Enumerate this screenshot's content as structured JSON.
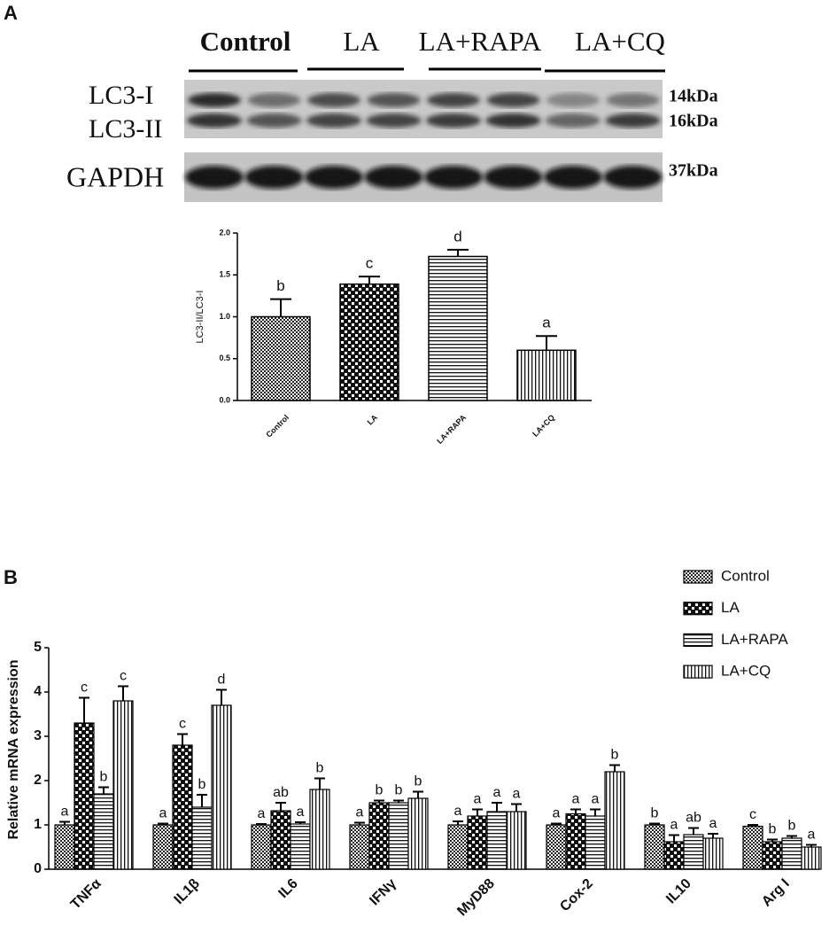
{
  "panel_labels": [
    "A",
    "B"
  ],
  "blot": {
    "lane_groups": [
      "Control",
      "LA",
      "LA+RAPA",
      "LA+CQ"
    ],
    "rows": [
      "LC3-I",
      "LC3-II",
      "GAPDH"
    ],
    "markers": [
      "14kDa",
      "16kDa",
      "37kDa"
    ]
  },
  "chart_data": [
    {
      "type": "bar",
      "y_label": "LC3-II/LC3-I",
      "categories": [
        "Control",
        "LA",
        "LA+RAPA",
        "LA+CQ"
      ],
      "values": [
        1.0,
        1.39,
        1.72,
        0.6
      ],
      "errors": [
        0.21,
        0.09,
        0.08,
        0.17
      ],
      "annotations": [
        "b",
        "c",
        "d",
        "a"
      ],
      "patterns": [
        "dots",
        "checker",
        "hlines",
        "vlines"
      ],
      "ylim": [
        0,
        2
      ],
      "yticks": [
        {
          "value": 0,
          "label": "0.0"
        },
        {
          "value": 0.5,
          "label": "0.5"
        },
        {
          "value": 1,
          "label": "1.0"
        },
        {
          "value": 1.5,
          "label": "1.5"
        },
        {
          "value": 2,
          "label": "2.0"
        }
      ]
    },
    {
      "type": "grouped_bar",
      "y_label": "Relative mRNA expression",
      "categories": [
        "TNFα",
        "IL1β",
        "IL6",
        "IFNγ",
        "MyD88",
        "Cox-2",
        "IL10",
        "Arg I"
      ],
      "series": [
        {
          "name": "Control",
          "pattern": "dots",
          "values": [
            1.0,
            1.0,
            1.0,
            1.0,
            1.0,
            1.0,
            1.0,
            0.97
          ],
          "errors": [
            0.07,
            0.03,
            0.02,
            0.05,
            0.08,
            0.03,
            0.03,
            0.03
          ],
          "annotations": [
            "a",
            "a",
            "a",
            "a",
            "a",
            "a",
            "b",
            "c"
          ]
        },
        {
          "name": "LA",
          "pattern": "checker",
          "values": [
            3.3,
            2.8,
            1.32,
            1.5,
            1.2,
            1.25,
            0.62,
            0.62
          ],
          "errors": [
            0.57,
            0.25,
            0.18,
            0.05,
            0.15,
            0.1,
            0.15,
            0.05
          ],
          "annotations": [
            "c",
            "c",
            "ab",
            "b",
            "a",
            "a",
            "a",
            "b"
          ]
        },
        {
          "name": "LA+RAPA",
          "pattern": "hlines",
          "values": [
            1.7,
            1.4,
            1.02,
            1.5,
            1.3,
            1.2,
            0.78,
            0.7
          ],
          "errors": [
            0.15,
            0.28,
            0.04,
            0.05,
            0.2,
            0.15,
            0.15,
            0.05
          ],
          "annotations": [
            "b",
            "b",
            "a",
            "b",
            "a",
            "a",
            "ab",
            "b"
          ]
        },
        {
          "name": "LA+CQ",
          "pattern": "vlines",
          "values": [
            3.8,
            3.7,
            1.8,
            1.6,
            1.3,
            2.2,
            0.7,
            0.5
          ],
          "errors": [
            0.33,
            0.35,
            0.25,
            0.15,
            0.17,
            0.15,
            0.1,
            0.05
          ],
          "annotations": [
            "c",
            "d",
            "b",
            "b",
            "a",
            "b",
            "a",
            "a"
          ]
        }
      ],
      "ylim": [
        0,
        5
      ],
      "yticks": [
        0,
        1,
        2,
        3,
        4,
        5
      ]
    }
  ]
}
